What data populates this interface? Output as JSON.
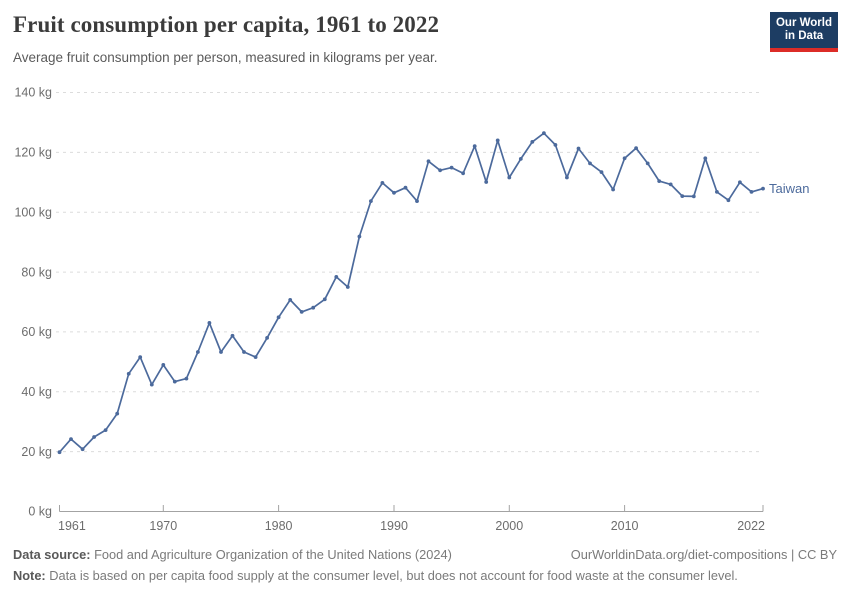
{
  "header": {
    "title": "Fruit consumption per capita, 1961 to 2022",
    "subtitle": "Average fruit consumption per person, measured in kilograms per year.",
    "logo": {
      "line1": "Our World",
      "line2": "in Data",
      "bg_color": "#1d3d63",
      "stripe_color": "#dc2c27"
    }
  },
  "chart_data": {
    "type": "line",
    "title": "Fruit consumption per capita, 1961 to 2022",
    "xlabel": "",
    "ylabel": "",
    "y_unit": "kg",
    "xlim": [
      1961,
      2022
    ],
    "ylim": [
      0,
      140
    ],
    "x_ticks": [
      1961,
      1970,
      1980,
      1990,
      2000,
      2010,
      2022
    ],
    "y_ticks": [
      0,
      20,
      40,
      60,
      80,
      100,
      120,
      140
    ],
    "grid": "horizontal-dashed",
    "legend_position": "end-of-line-label",
    "x": [
      1961,
      1962,
      1963,
      1964,
      1965,
      1966,
      1967,
      1968,
      1969,
      1970,
      1971,
      1972,
      1973,
      1974,
      1975,
      1976,
      1977,
      1978,
      1979,
      1980,
      1981,
      1982,
      1983,
      1984,
      1985,
      1986,
      1987,
      1988,
      1989,
      1990,
      1991,
      1992,
      1993,
      1994,
      1995,
      1996,
      1997,
      1998,
      1999,
      2000,
      2001,
      2002,
      2003,
      2004,
      2005,
      2006,
      2007,
      2008,
      2009,
      2010,
      2011,
      2012,
      2013,
      2014,
      2015,
      2016,
      2017,
      2018,
      2019,
      2020,
      2021,
      2022
    ],
    "series": [
      {
        "name": "Taiwan",
        "color": "#4c6a9c",
        "values": [
          19.8,
          24.2,
          20.8,
          24.9,
          27.2,
          32.7,
          46.0,
          51.6,
          42.4,
          49.0,
          43.4,
          44.4,
          53.3,
          63.0,
          53.3,
          58.7,
          53.3,
          51.6,
          58.0,
          64.9,
          70.7,
          66.7,
          68.1,
          70.9,
          78.4,
          75.0,
          91.9,
          103.7,
          109.8,
          106.5,
          108.2,
          103.7,
          117.0,
          114.0,
          114.9,
          113.0,
          122.1,
          110.1,
          124.0,
          111.6,
          117.8,
          123.5,
          126.4,
          122.5,
          111.6,
          121.3,
          116.3,
          113.4,
          107.6,
          118.0,
          121.4,
          116.3,
          110.4,
          109.3,
          105.4,
          105.3,
          118.0,
          106.8,
          104.0,
          110.0,
          106.8,
          107.9
        ]
      }
    ]
  },
  "footer": {
    "datasource_label": "Data source:",
    "datasource_text": " Food and Agriculture Organization of the United Nations (2024)",
    "citation": "OurWorldinData.org/diet-compositions | CC BY",
    "note_label": "Note:",
    "note_text": " Data is based on per capita food supply at the consumer level, but does not account for food waste at the consumer level."
  }
}
